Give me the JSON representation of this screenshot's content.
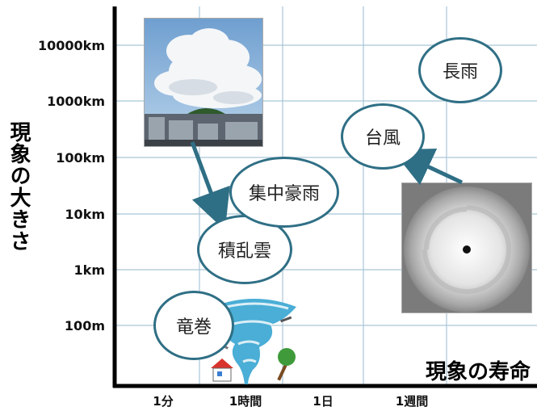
{
  "y_axis": {
    "title": "現象の大きさ",
    "ticks": [
      "10000km",
      "1000km",
      "100km",
      "10km",
      "1km",
      "100m"
    ]
  },
  "x_axis": {
    "title": "現象の寿命",
    "ticks": [
      "1分",
      "1時間",
      "1日",
      "1週間"
    ]
  },
  "phenomena": {
    "tornado": "竜巻",
    "cumulonimbus": "積乱雲",
    "heavy_rain": "集中豪雨",
    "typhoon": "台風",
    "long_rain": "長雨"
  },
  "images": {
    "cloud_photo": "cumulonimbus-cloud-photo",
    "typhoon_satellite": "typhoon-satellite-image",
    "tornado_illustration": "tornado-illustration"
  },
  "colors": {
    "bubble_border": "#2f6f85",
    "grid": "#a9c6d8",
    "arrow": "#2f6f85"
  }
}
